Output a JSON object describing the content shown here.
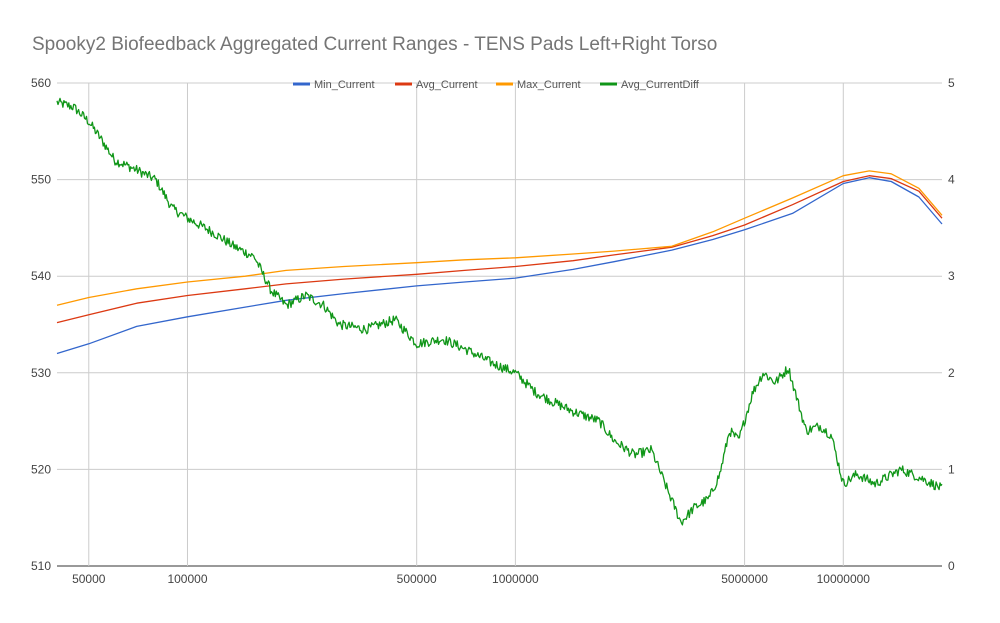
{
  "chart_data": {
    "type": "line",
    "title": "Spooky2 Biofeedback Aggregated Current Ranges - TENS Pads Left+Right Torso",
    "xlabel": "",
    "ylabel": "",
    "x_scale": "log",
    "xlim": [
      40000,
      20000000
    ],
    "x_ticks": [
      {
        "value": 50000,
        "label": "50000"
      },
      {
        "value": 100000,
        "label": "100000"
      },
      {
        "value": 500000,
        "label": "500000"
      },
      {
        "value": 1000000,
        "label": "1000000"
      },
      {
        "value": 5000000,
        "label": "5000000"
      },
      {
        "value": 10000000,
        "label": "10000000"
      }
    ],
    "ylim_left": [
      510,
      560
    ],
    "y_ticks_left": [
      "510",
      "520",
      "530",
      "540",
      "550",
      "560"
    ],
    "ylim_right": [
      0,
      5
    ],
    "y_ticks_right": [
      "0",
      "1",
      "2",
      "3",
      "4",
      "5"
    ],
    "grid": true,
    "legend_position": "top",
    "series": [
      {
        "name": "Min_Current",
        "color": "#3366cc",
        "axis": "left",
        "points": [
          [
            40000,
            532.0
          ],
          [
            50000,
            533.0
          ],
          [
            70000,
            534.8
          ],
          [
            100000,
            535.8
          ],
          [
            150000,
            536.8
          ],
          [
            200000,
            537.5
          ],
          [
            300000,
            538.2
          ],
          [
            500000,
            539.0
          ],
          [
            700000,
            539.4
          ],
          [
            1000000,
            539.8
          ],
          [
            1500000,
            540.7
          ],
          [
            2000000,
            541.5
          ],
          [
            3000000,
            542.7
          ],
          [
            4000000,
            543.8
          ],
          [
            5000000,
            544.8
          ],
          [
            7000000,
            546.5
          ],
          [
            10000000,
            549.6
          ],
          [
            12000000,
            550.2
          ],
          [
            14000000,
            549.8
          ],
          [
            17000000,
            548.2
          ],
          [
            20000000,
            545.4
          ]
        ]
      },
      {
        "name": "Avg_Current",
        "color": "#dc3912",
        "axis": "left",
        "points": [
          [
            40000,
            535.2
          ],
          [
            50000,
            536.0
          ],
          [
            70000,
            537.2
          ],
          [
            100000,
            538.0
          ],
          [
            150000,
            538.7
          ],
          [
            200000,
            539.2
          ],
          [
            300000,
            539.7
          ],
          [
            500000,
            540.2
          ],
          [
            700000,
            540.6
          ],
          [
            1000000,
            541.0
          ],
          [
            1500000,
            541.6
          ],
          [
            2000000,
            542.2
          ],
          [
            3000000,
            543.0
          ],
          [
            4000000,
            544.2
          ],
          [
            5000000,
            545.3
          ],
          [
            7000000,
            547.4
          ],
          [
            10000000,
            549.8
          ],
          [
            12000000,
            550.4
          ],
          [
            14000000,
            550.1
          ],
          [
            17000000,
            548.8
          ],
          [
            20000000,
            546.0
          ]
        ]
      },
      {
        "name": "Max_Current",
        "color": "#ff9900",
        "axis": "left",
        "points": [
          [
            40000,
            537.0
          ],
          [
            50000,
            537.8
          ],
          [
            70000,
            538.7
          ],
          [
            100000,
            539.4
          ],
          [
            150000,
            540.0
          ],
          [
            200000,
            540.6
          ],
          [
            300000,
            541.0
          ],
          [
            500000,
            541.4
          ],
          [
            700000,
            541.7
          ],
          [
            1000000,
            541.9
          ],
          [
            1500000,
            542.3
          ],
          [
            2000000,
            542.6
          ],
          [
            3000000,
            543.1
          ],
          [
            4000000,
            544.6
          ],
          [
            5000000,
            546.0
          ],
          [
            7000000,
            548.1
          ],
          [
            10000000,
            550.4
          ],
          [
            12000000,
            550.9
          ],
          [
            14000000,
            550.6
          ],
          [
            17000000,
            549.1
          ],
          [
            20000000,
            546.3
          ]
        ]
      },
      {
        "name": "Avg_CurrentDiff",
        "color": "#109618",
        "axis": "right",
        "noise": 0.05,
        "points": [
          [
            40000,
            4.8
          ],
          [
            45000,
            4.75
          ],
          [
            50000,
            4.6
          ],
          [
            55000,
            4.4
          ],
          [
            60000,
            4.2
          ],
          [
            70000,
            4.1
          ],
          [
            80000,
            4.0
          ],
          [
            90000,
            3.7
          ],
          [
            100000,
            3.6
          ],
          [
            120000,
            3.45
          ],
          [
            140000,
            3.3
          ],
          [
            160000,
            3.2
          ],
          [
            180000,
            2.85
          ],
          [
            200000,
            2.7
          ],
          [
            230000,
            2.8
          ],
          [
            260000,
            2.7
          ],
          [
            290000,
            2.5
          ],
          [
            350000,
            2.45
          ],
          [
            430000,
            2.55
          ],
          [
            500000,
            2.3
          ],
          [
            600000,
            2.35
          ],
          [
            700000,
            2.25
          ],
          [
            850000,
            2.1
          ],
          [
            1000000,
            2.0
          ],
          [
            1150000,
            1.8
          ],
          [
            1300000,
            1.7
          ],
          [
            1500000,
            1.6
          ],
          [
            1800000,
            1.5
          ],
          [
            2000000,
            1.3
          ],
          [
            2300000,
            1.15
          ],
          [
            2600000,
            1.2
          ],
          [
            2900000,
            0.8
          ],
          [
            3200000,
            0.45
          ],
          [
            3500000,
            0.6
          ],
          [
            3900000,
            0.7
          ],
          [
            4200000,
            0.95
          ],
          [
            4500000,
            1.4
          ],
          [
            4800000,
            1.3
          ],
          [
            5300000,
            1.8
          ],
          [
            5700000,
            2.0
          ],
          [
            6200000,
            1.9
          ],
          [
            6800000,
            2.05
          ],
          [
            7200000,
            1.75
          ],
          [
            7700000,
            1.4
          ],
          [
            8500000,
            1.45
          ],
          [
            9200000,
            1.35
          ],
          [
            10000000,
            0.85
          ],
          [
            11000000,
            0.95
          ],
          [
            12500000,
            0.85
          ],
          [
            15000000,
            1.0
          ],
          [
            17500000,
            0.9
          ],
          [
            20000000,
            0.8
          ]
        ]
      }
    ]
  }
}
